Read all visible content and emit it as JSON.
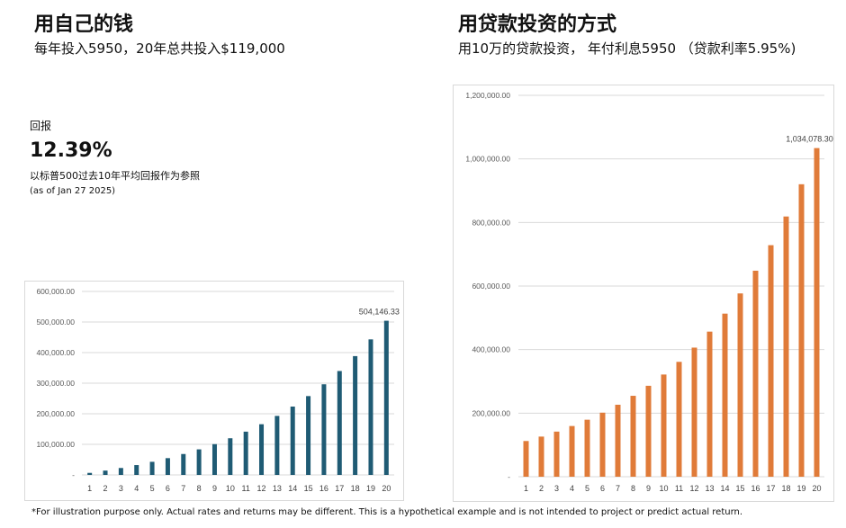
{
  "left": {
    "title": "用自己的钱",
    "subtitle": "每年投入5950，20年总共投入$119,000",
    "return_label": "回报",
    "return_value": "12.39%",
    "note": "以标普500过去10年平均回报作为参照",
    "as_of": "(as of Jan 27 2025)"
  },
  "right": {
    "title": "用贷款投资的方式",
    "subtitle": "用10万的贷款投资， 年付利息5950 （贷款利率5.95%)"
  },
  "footnote": "*For illustration purpose only. Actual rates and returns may be different. This is a hypothetical example and is not intended to project or predict actual return.",
  "chart_data": [
    {
      "type": "bar",
      "color": "#1f5b74",
      "categories": [
        "1",
        "2",
        "3",
        "4",
        "5",
        "6",
        "7",
        "8",
        "9",
        "10",
        "11",
        "12",
        "13",
        "14",
        "15",
        "16",
        "17",
        "18",
        "19",
        "20"
      ],
      "values": [
        6700,
        14200,
        22700,
        32200,
        42900,
        54900,
        68400,
        83600,
        100700,
        119900,
        141500,
        165800,
        193000,
        223500,
        257800,
        296400,
        339800,
        388500,
        443200,
        504146.33
      ],
      "ylim": [
        0,
        600000
      ],
      "yticks": [
        0,
        100000,
        200000,
        300000,
        400000,
        500000,
        600000
      ],
      "ytick_labels": [
        "-",
        "100,000.00",
        "200,000.00",
        "300,000.00",
        "400,000.00",
        "500,000.00",
        "600,000.00"
      ],
      "data_label": {
        "index": 19,
        "text": "504,146.33"
      },
      "grid": true
    },
    {
      "type": "bar",
      "color": "#e07b39",
      "categories": [
        "1",
        "2",
        "3",
        "4",
        "5",
        "6",
        "7",
        "8",
        "9",
        "10",
        "11",
        "12",
        "13",
        "14",
        "15",
        "16",
        "17",
        "18",
        "19",
        "20"
      ],
      "values": [
        112390,
        126320,
        141970,
        159560,
        179330,
        201550,
        226520,
        254590,
        286140,
        321600,
        361450,
        406240,
        456580,
        513160,
        576750,
        648210,
        728530,
        818800,
        920260,
        1034078.3
      ],
      "ylim": [
        0,
        1200000
      ],
      "yticks": [
        0,
        200000,
        400000,
        600000,
        800000,
        1000000,
        1200000
      ],
      "ytick_labels": [
        "-",
        "200,000.00",
        "400,000.00",
        "600,000.00",
        "800,000.00",
        "1,000,000.00",
        "1,200,000.00"
      ],
      "data_label": {
        "index": 19,
        "text": "1,034,078.30"
      },
      "grid": true
    }
  ]
}
